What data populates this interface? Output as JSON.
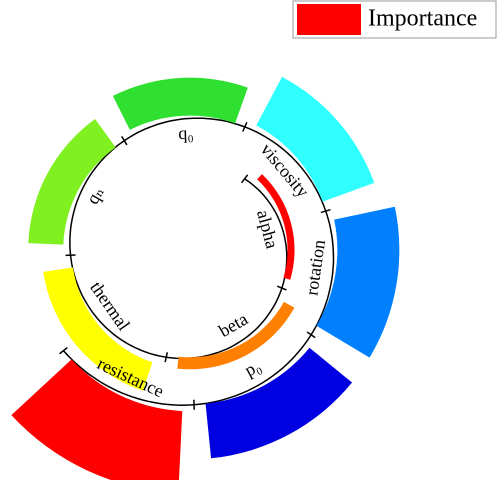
{
  "chart_data": {
    "type": "radial_bar",
    "categories": [
      "alpha",
      "beta",
      "thermal",
      "qₙ",
      "q₀",
      "viscosity",
      "rotation",
      "p₀",
      "resistance"
    ],
    "series": [
      {
        "name": "Importance",
        "color": "#ff0000",
        "colors": [
          "#ff0000",
          "#ff8000",
          "#ffff00",
          "#80f020",
          "#30e030",
          "#30ffff",
          "#0080ff",
          "#0000e0",
          "#ff0000"
        ],
        "values": [
          7,
          12,
          30,
          35,
          38,
          55,
          62,
          55,
          82
        ]
      }
    ],
    "legend": "upper right"
  }
}
